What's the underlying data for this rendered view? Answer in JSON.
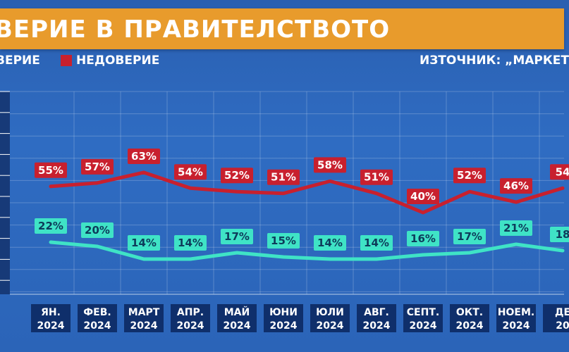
{
  "header": {
    "title": "ВЕРИЕ В ПРАВИТЕЛСТВОТО",
    "legend_trust": "ВЕРИЕ",
    "legend_distrust": "НЕДОВЕРИЕ",
    "source": "ИЗТОЧНИК: „МАРКЕТ"
  },
  "colors": {
    "distrust": "#c8202e",
    "trust": "#3fe3c6",
    "title_bg": "#e89b2c"
  },
  "chart_data": {
    "type": "line",
    "categories": [
      [
        "ЯН.",
        "2024"
      ],
      [
        "ФЕВ.",
        "2024"
      ],
      [
        "МАРТ",
        "2024"
      ],
      [
        "АПР.",
        "2024"
      ],
      [
        "МАЙ",
        "2024"
      ],
      [
        "ЮНИ",
        "2024"
      ],
      [
        "ЮЛИ",
        "2024"
      ],
      [
        "АВГ.",
        "2024"
      ],
      [
        "СЕПТ.",
        "2024"
      ],
      [
        "ОКТ.",
        "2024"
      ],
      [
        "НОЕМ.",
        "2024"
      ],
      [
        "ДЕ",
        "20"
      ]
    ],
    "series": [
      {
        "name": "НЕДОВЕРИЕ",
        "values": [
          55,
          57,
          63,
          54,
          52,
          51,
          58,
          51,
          40,
          52,
          46,
          54
        ],
        "labels": [
          "55%",
          "57%",
          "63%",
          "54%",
          "52%",
          "51%",
          "58%",
          "51%",
          "40%",
          "52%",
          "46%",
          "54"
        ]
      },
      {
        "name": "ВЕРИЕ",
        "values": [
          22,
          20,
          14,
          14,
          17,
          15,
          14,
          14,
          16,
          17,
          21,
          18
        ],
        "labels": [
          "22%",
          "20%",
          "14%",
          "14%",
          "17%",
          "15%",
          "14%",
          "14%",
          "16%",
          "17%",
          "21%",
          "18"
        ]
      }
    ],
    "ylim": [
      0,
      100
    ],
    "grid": true,
    "legend": "top-left"
  }
}
